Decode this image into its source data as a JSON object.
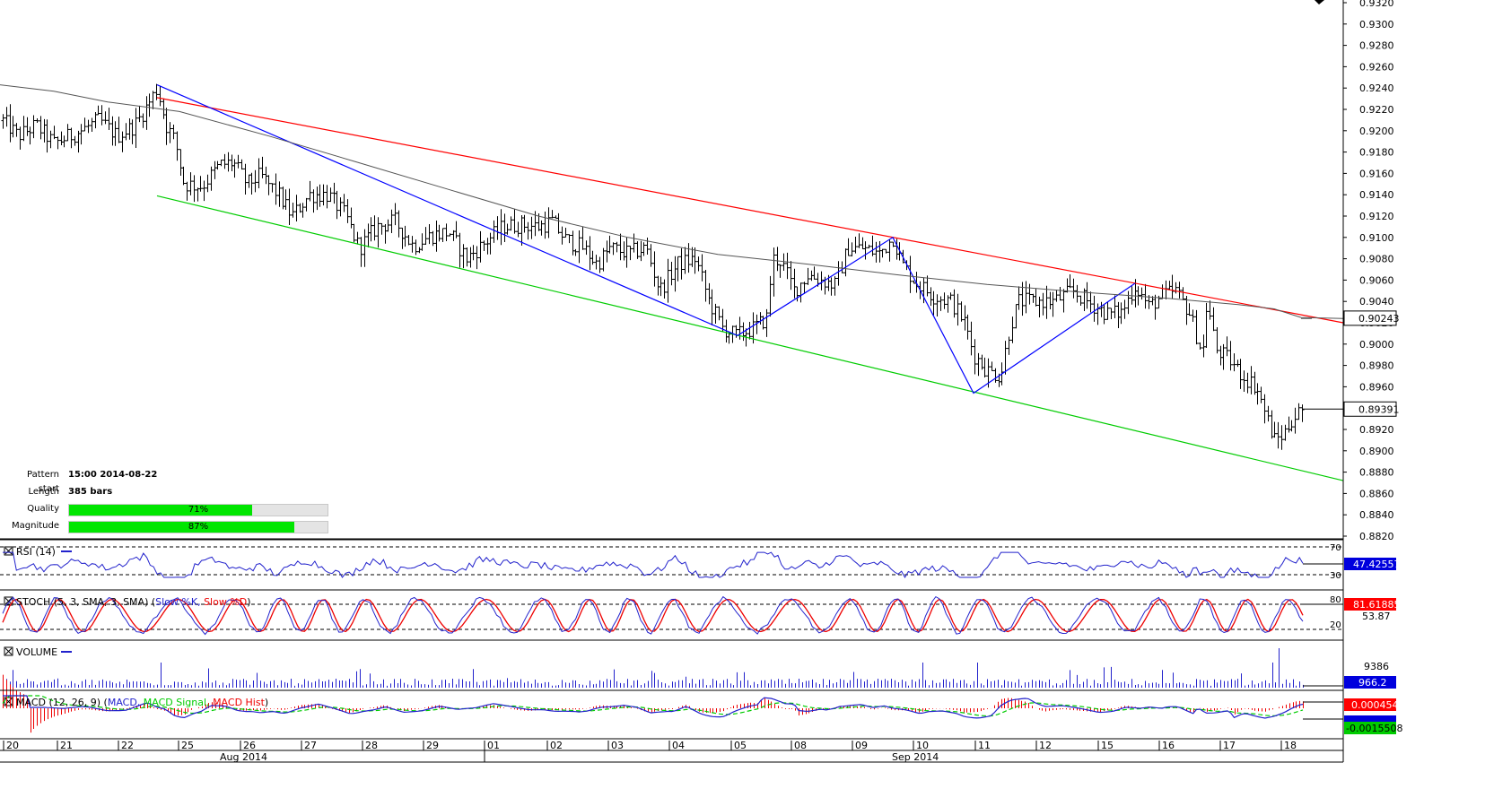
{
  "chart_data": {
    "type": "ohlc",
    "symbol_period": "1-hour bars",
    "price_axis": {
      "range": [
        0.882,
        0.932
      ],
      "ticks": [
        "0.9320",
        "0.9300",
        "0.9280",
        "0.9260",
        "0.9240",
        "0.9220",
        "0.9200",
        "0.9180",
        "0.9160",
        "0.9140",
        "0.9120",
        "0.9100",
        "0.9080",
        "0.9060",
        "0.9040",
        "0.9020",
        "0.9000",
        "0.8980",
        "0.8960",
        "0.8940",
        "0.8920",
        "0.8900",
        "0.8880",
        "0.8860",
        "0.8840",
        "0.8820"
      ],
      "last_price_label": "0.89391",
      "ma_label": "0.90243"
    },
    "time_axis": {
      "days": [
        "20",
        "21",
        "22",
        "25",
        "26",
        "27",
        "28",
        "29",
        "01",
        "02",
        "03",
        "04",
        "05",
        "08",
        "09",
        "10",
        "11",
        "12",
        "15",
        "16",
        "17",
        "18"
      ],
      "months": [
        "Aug 2014",
        "Sep 2014"
      ]
    },
    "price_path": [
      [
        0,
        0.9212
      ],
      [
        20,
        0.9195
      ],
      [
        40,
        0.9205
      ],
      [
        60,
        0.9188
      ],
      [
        90,
        0.92
      ],
      [
        110,
        0.921
      ],
      [
        130,
        0.9195
      ],
      [
        150,
        0.9205
      ],
      [
        165,
        0.9225
      ],
      [
        175,
        0.924
      ],
      [
        185,
        0.9205
      ],
      [
        195,
        0.919
      ],
      [
        205,
        0.915
      ],
      [
        225,
        0.9148
      ],
      [
        245,
        0.9168
      ],
      [
        260,
        0.917
      ],
      [
        275,
        0.915
      ],
      [
        290,
        0.9158
      ],
      [
        310,
        0.914
      ],
      [
        325,
        0.912
      ],
      [
        345,
        0.914
      ],
      [
        365,
        0.914
      ],
      [
        385,
        0.912
      ],
      [
        400,
        0.909
      ],
      [
        420,
        0.911
      ],
      [
        440,
        0.9115
      ],
      [
        460,
        0.9092
      ],
      [
        480,
        0.9102
      ],
      [
        500,
        0.9105
      ],
      [
        520,
        0.908
      ],
      [
        540,
        0.9095
      ],
      [
        560,
        0.911
      ],
      [
        580,
        0.9112
      ],
      [
        600,
        0.911
      ],
      [
        615,
        0.9115
      ],
      [
        630,
        0.9098
      ],
      [
        650,
        0.909
      ],
      [
        665,
        0.9075
      ],
      [
        680,
        0.909
      ],
      [
        700,
        0.9085
      ],
      [
        720,
        0.909
      ],
      [
        735,
        0.905
      ],
      [
        755,
        0.9075
      ],
      [
        775,
        0.908
      ],
      [
        790,
        0.904
      ],
      [
        805,
        0.9015
      ],
      [
        820,
        0.9008
      ],
      [
        840,
        0.9015
      ],
      [
        855,
        0.9025
      ],
      [
        860,
        0.908
      ],
      [
        870,
        0.9078
      ],
      [
        885,
        0.905
      ],
      [
        900,
        0.9065
      ],
      [
        915,
        0.906
      ],
      [
        930,
        0.9055
      ],
      [
        945,
        0.909
      ],
      [
        960,
        0.909
      ],
      [
        980,
        0.9085
      ],
      [
        995,
        0.91
      ],
      [
        1005,
        0.9075
      ],
      [
        1020,
        0.9058
      ],
      [
        1040,
        0.9045
      ],
      [
        1060,
        0.904
      ],
      [
        1075,
        0.902
      ],
      [
        1085,
        0.899
      ],
      [
        1100,
        0.8975
      ],
      [
        1115,
        0.897
      ],
      [
        1125,
        0.9015
      ],
      [
        1135,
        0.904
      ],
      [
        1155,
        0.904
      ],
      [
        1175,
        0.904
      ],
      [
        1195,
        0.905
      ],
      [
        1215,
        0.9038
      ],
      [
        1235,
        0.9028
      ],
      [
        1250,
        0.903
      ],
      [
        1265,
        0.9055
      ],
      [
        1280,
        0.9035
      ],
      [
        1295,
        0.9045
      ],
      [
        1310,
        0.905
      ],
      [
        1325,
        0.903
      ],
      [
        1340,
        0.899
      ],
      [
        1345,
        0.904
      ],
      [
        1355,
        0.8995
      ],
      [
        1370,
        0.8985
      ],
      [
        1385,
        0.897
      ],
      [
        1400,
        0.896
      ],
      [
        1410,
        0.8935
      ],
      [
        1420,
        0.891
      ],
      [
        1430,
        0.8915
      ],
      [
        1440,
        0.893
      ],
      [
        1452,
        0.8939
      ]
    ],
    "trendlines": [
      {
        "name": "resistance",
        "color": "#ff0000",
        "points": [
          [
            175,
            0.9231
          ],
          [
            1497,
            0.902
          ]
        ]
      },
      {
        "name": "support",
        "color": "#00cc00",
        "points": [
          [
            175,
            0.9139
          ],
          [
            1497,
            0.8872
          ]
        ]
      },
      {
        "name": "zigzag",
        "color": "#0000ff",
        "points": [
          [
            175,
            0.9243
          ],
          [
            822,
            0.9008
          ],
          [
            995,
            0.91
          ],
          [
            1085,
            0.8954
          ],
          [
            1265,
            0.9057
          ]
        ]
      },
      {
        "name": "moving-average",
        "color": "#555555",
        "points": [
          [
            0,
            0.9243
          ],
          [
            60,
            0.9237
          ],
          [
            120,
            0.9227
          ],
          [
            200,
            0.9218
          ],
          [
            300,
            0.9195
          ],
          [
            400,
            0.917
          ],
          [
            500,
            0.9145
          ],
          [
            600,
            0.912
          ],
          [
            700,
            0.91
          ],
          [
            800,
            0.9084
          ],
          [
            900,
            0.9075
          ],
          [
            1000,
            0.9065
          ],
          [
            1100,
            0.9056
          ],
          [
            1200,
            0.9049
          ],
          [
            1300,
            0.9043
          ],
          [
            1380,
            0.9037
          ],
          [
            1420,
            0.9033
          ],
          [
            1450,
            0.9025
          ],
          [
            1497,
            0.9024
          ]
        ]
      }
    ],
    "info": {
      "pattern_start_label": "Pattern start",
      "pattern_start_value": "15:00 2014-08-22",
      "length_label": "Length",
      "length_value": "385 bars",
      "quality_label": "Quality",
      "quality_value": 0.71,
      "quality_text": "71%",
      "magnitude_label": "Magnitude",
      "magnitude_value": 0.87,
      "magnitude_text": "87%"
    },
    "indicators": {
      "rsi": {
        "label": "RSI (14)",
        "levels": [
          "70",
          "30"
        ],
        "value_label": "47.42557",
        "color": "#2222cc"
      },
      "stoch": {
        "label_prefix": "STOCH (5, 3, SMA, 3, SMA)",
        "slow_k": "Slow %K,",
        "slow_d": "Slow %D",
        "levels": [
          "80",
          "20"
        ],
        "value_label": "81.61885",
        "value2": "53.87",
        "k_color": "#2222cc",
        "d_color": "#ee0000"
      },
      "volume": {
        "label": "VOLUME",
        "value_label": "966.2",
        "value2": "9386",
        "color": "#2222cc"
      },
      "macd": {
        "label_prefix": "MACD (12, 26, 9)",
        "macd": "MACD,",
        "signal": "MACD Signal,",
        "hist": "MACD Hist",
        "value_label": "0.000454",
        "value2": "-0.0015508",
        "macd_color": "#2222cc",
        "signal_color": "#00cc00",
        "hist_color": "#ee0000"
      }
    }
  }
}
